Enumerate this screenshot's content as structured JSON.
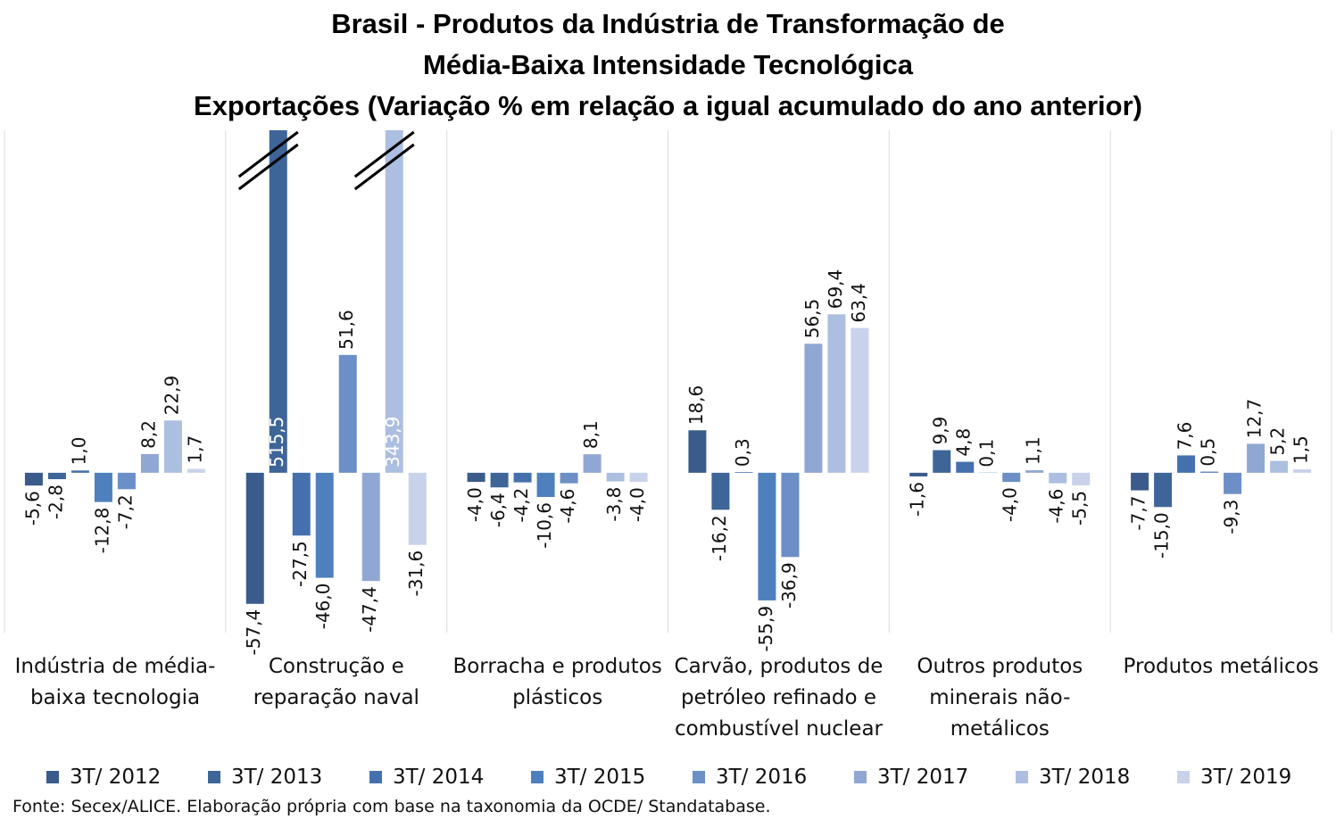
{
  "chart_data": {
    "type": "bar",
    "title": [
      "Brasil - Produtos da Indústria de Transformação de",
      "Média-Baixa Intensidade Tecnológica",
      "Exportações (Variação % em relação a igual acumulado do ano anterior)"
    ],
    "categories": [
      "Indústria de média-baixa tecnologia",
      "Construção e reparação naval",
      "Borracha e produtos plásticos",
      "Carvão, produtos de petróleo refinado e combustível nuclear",
      "Outros produtos minerais não-metálicos",
      "Produtos metálicos"
    ],
    "series": [
      {
        "name": "3T/ 2012",
        "color": "#3a5b8c",
        "values": [
          -5.6,
          -57.4,
          -4.0,
          18.6,
          -1.6,
          -7.7
        ],
        "value_labels": [
          "-5,6",
          "-57,4",
          "-4,0",
          "18,6",
          "-1,6",
          "-7,7"
        ]
      },
      {
        "name": "3T/ 2013",
        "color": "#3e6598",
        "values": [
          -2.8,
          515.5,
          -6.4,
          -16.2,
          9.9,
          -15.0
        ],
        "value_labels": [
          "-2,8",
          "515,5",
          "-6,4",
          "-16,2",
          "9,9",
          "-15,0"
        ]
      },
      {
        "name": "3T/ 2014",
        "color": "#4471ad",
        "values": [
          1.0,
          -27.5,
          -4.2,
          0.3,
          4.8,
          7.6
        ],
        "value_labels": [
          "1,0",
          "-27,5",
          "-4,2",
          "0,3",
          "4,8",
          "7,6"
        ]
      },
      {
        "name": "3T/ 2015",
        "color": "#4e80bd",
        "values": [
          -12.8,
          -46.0,
          -10.6,
          -55.9,
          0.1,
          0.5
        ],
        "value_labels": [
          "-12,8",
          "-46,0",
          "-10,6",
          "-55,9",
          "0,1",
          "0,5"
        ]
      },
      {
        "name": "3T/ 2016",
        "color": "#6b8fc6",
        "values": [
          -7.2,
          51.6,
          -4.6,
          -36.9,
          -4.0,
          -9.3
        ],
        "value_labels": [
          "-7,2",
          "51,6",
          "-4,6",
          "-36,9",
          "-4,0",
          "-9,3"
        ]
      },
      {
        "name": "3T/ 2017",
        "color": "#91a7d3",
        "values": [
          8.2,
          -47.4,
          8.1,
          56.5,
          1.1,
          12.7
        ],
        "value_labels": [
          "8,2",
          "-47,4",
          "8,1",
          "56,5",
          "1,1",
          "12,7"
        ]
      },
      {
        "name": "3T/ 2018",
        "color": "#adbfe0",
        "values": [
          22.9,
          343.9,
          -3.8,
          69.4,
          -4.6,
          5.2
        ],
        "value_labels": [
          "22,9",
          "343,9",
          "-3,8",
          "69,4",
          "-4,6",
          "5,2"
        ]
      },
      {
        "name": "3T/ 2019",
        "color": "#c8d2ea",
        "values": [
          1.7,
          -31.6,
          -4.0,
          63.4,
          -5.5,
          1.5
        ],
        "value_labels": [
          "1,7",
          "-31,6",
          "-4,0",
          "63,4",
          "-5,5",
          "1,5"
        ]
      }
    ],
    "ylim": [
      -70,
      150
    ],
    "source": "Fonte: Secex/ALICE. Elaboração própria com base na taxonomia da OCDE/ Standatabase."
  }
}
